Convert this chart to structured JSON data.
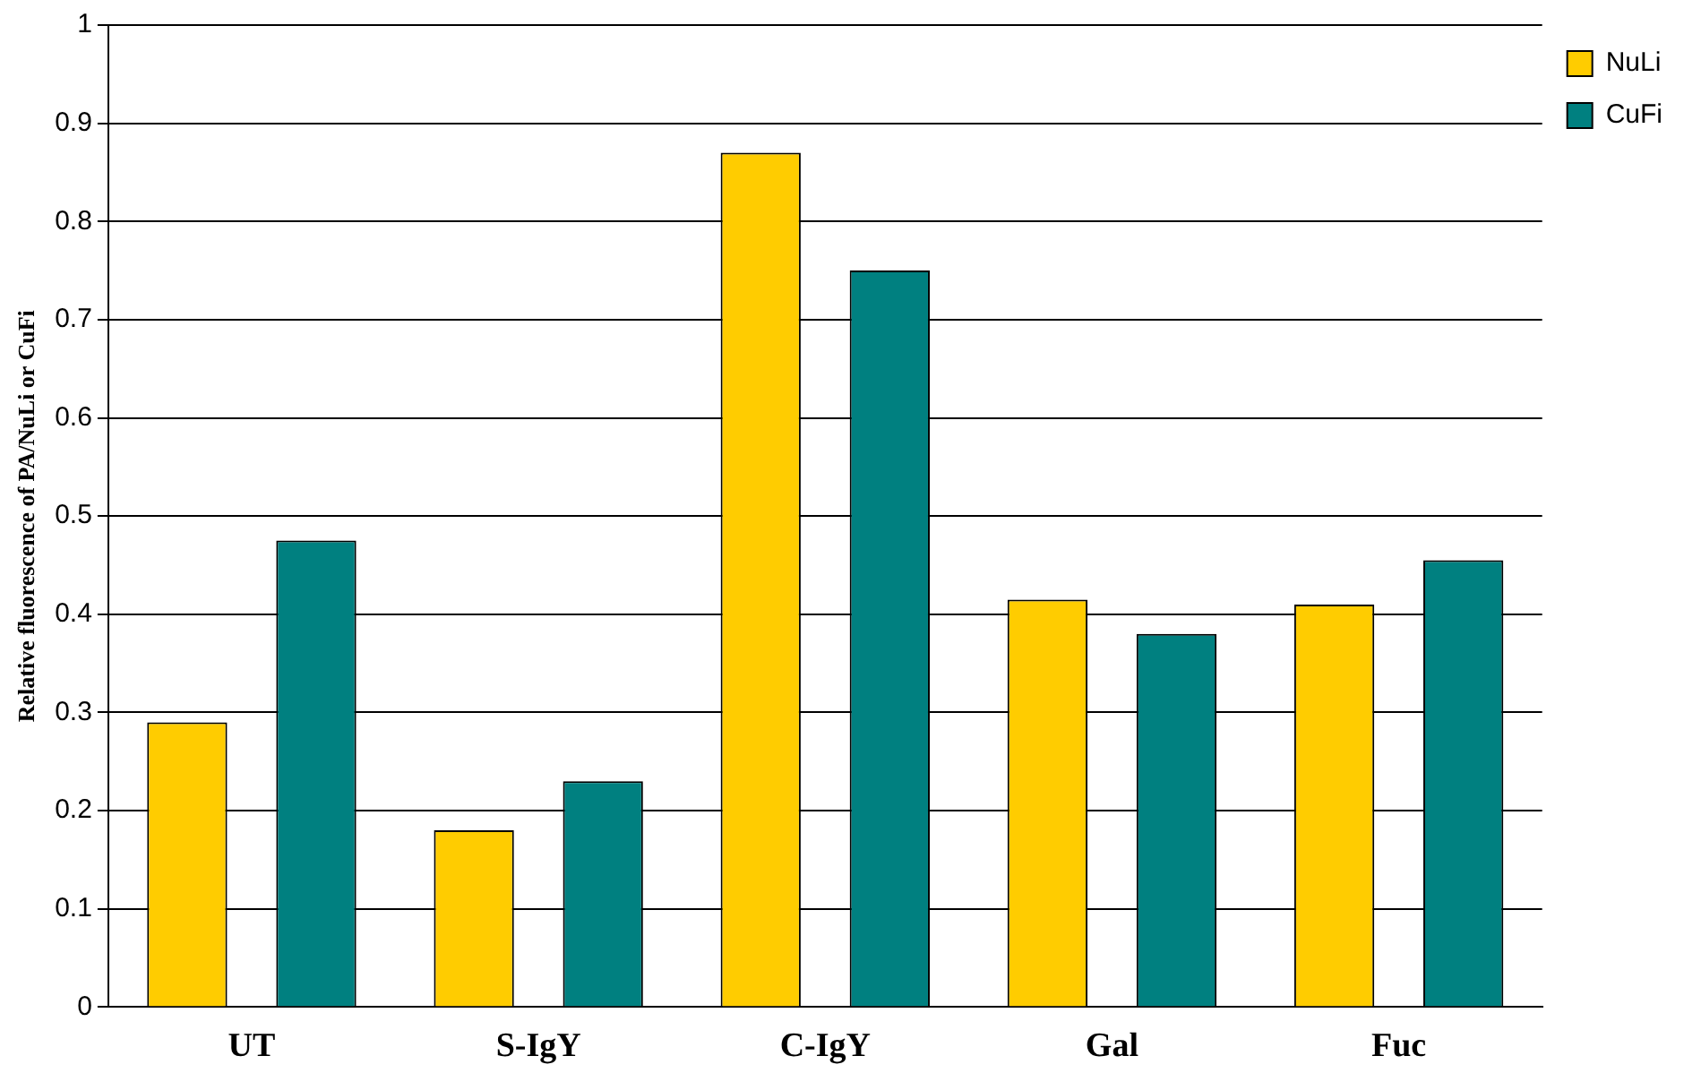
{
  "chart_data": {
    "type": "bar",
    "ylabel": "Relative fluorescence of PA/NuLi or CuFi",
    "categories": [
      "UT",
      "S-IgY",
      "C-IgY",
      "Gal",
      "Fuc"
    ],
    "series": [
      {
        "name": "NuLi",
        "color": "#ffcc00",
        "values": [
          0.29,
          0.18,
          0.87,
          0.415,
          0.41
        ]
      },
      {
        "name": "CuFi",
        "color": "#008080",
        "values": [
          0.475,
          0.23,
          0.75,
          0.38,
          0.455
        ]
      }
    ],
    "ylim": [
      0,
      1
    ],
    "yticks": [
      0,
      0.1,
      0.2,
      0.3,
      0.4,
      0.5,
      0.6,
      0.7,
      0.8,
      0.9,
      1
    ],
    "grid": "y",
    "legend": "top right"
  }
}
